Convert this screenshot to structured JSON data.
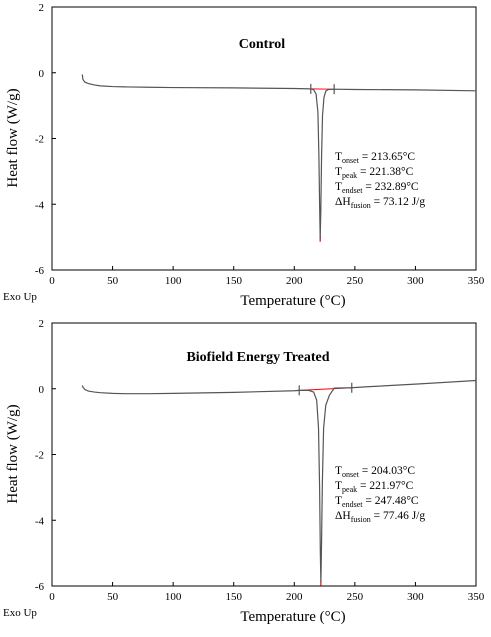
{
  "chart_data": [
    {
      "type": "line",
      "title": "Control",
      "xlabel": "Temperature (°C)",
      "ylabel": "Heat flow (W/g)",
      "corner_label": "Exo Up",
      "xlim": [
        0,
        350
      ],
      "ylim": [
        -6,
        2
      ],
      "x_ticks": [
        "0",
        "50",
        "100",
        "150",
        "200",
        "250",
        "300",
        "350"
      ],
      "y_ticks": [
        "2",
        "0",
        "-2",
        "-4",
        "-6"
      ],
      "grid": false,
      "series": [
        {
          "x": [
            25,
            25.5,
            27,
            30,
            35,
            40,
            50,
            60,
            80,
            100,
            150,
            200,
            213.65,
            216,
            218,
            219.5,
            220.3,
            220.9,
            221.38,
            221.9,
            222.5,
            223.3,
            224.5,
            226,
            228,
            232.89,
            250,
            300,
            350
          ],
          "y": [
            -0.05,
            -0.2,
            -0.28,
            -0.33,
            -0.37,
            -0.4,
            -0.42,
            -0.43,
            -0.44,
            -0.45,
            -0.46,
            -0.48,
            -0.49,
            -0.52,
            -0.65,
            -1.2,
            -2.5,
            -4.0,
            -5.05,
            -4.2,
            -2.6,
            -1.3,
            -0.75,
            -0.56,
            -0.51,
            -0.5,
            -0.51,
            -0.52,
            -0.55
          ]
        }
      ],
      "annotations": {
        "onset": {
          "label": "T",
          "sub": "onset",
          "value": " = 213.65°C"
        },
        "peak": {
          "label": "T",
          "sub": "peak",
          "value": " = 221.38°C"
        },
        "endset": {
          "label": "T",
          "sub": "endset",
          "value": " = 232.89°C"
        },
        "enthalpy": {
          "label": "ΔH",
          "sub": "fusion",
          "value": " = 73.12 J/g"
        }
      },
      "colors": {
        "line": "#555555",
        "baseline": "#ff0000"
      }
    },
    {
      "type": "line",
      "title": "Biofield Energy Treated",
      "xlabel": "Temperature (°C)",
      "ylabel": "Heat flow (W/g)",
      "corner_label": "Exo Up",
      "xlim": [
        0,
        350
      ],
      "ylim": [
        -6,
        2
      ],
      "x_ticks": [
        "0",
        "50",
        "100",
        "150",
        "200",
        "250",
        "300",
        "350"
      ],
      "y_ticks": [
        "2",
        "0",
        "-2",
        "-4",
        "-6"
      ],
      "grid": false,
      "series": [
        {
          "x": [
            25,
            25.5,
            27,
            30,
            35,
            40,
            50,
            60,
            80,
            100,
            150,
            200,
            204.03,
            212,
            216,
            218.5,
            220,
            220.9,
            221.5,
            221.97,
            222.5,
            223.2,
            224.2,
            226,
            229,
            233,
            247.48,
            260,
            300,
            350
          ],
          "y": [
            0.1,
            0.05,
            -0.02,
            -0.07,
            -0.1,
            -0.12,
            -0.14,
            -0.15,
            -0.15,
            -0.14,
            -0.11,
            -0.06,
            -0.05,
            -0.05,
            -0.1,
            -0.35,
            -1.2,
            -3.0,
            -5.0,
            -5.9,
            -4.7,
            -2.8,
            -1.2,
            -0.5,
            -0.2,
            0.02,
            0.03,
            0.06,
            0.14,
            0.25
          ]
        }
      ],
      "annotations": {
        "onset": {
          "label": "T",
          "sub": "onset",
          "value": " = 204.03°C"
        },
        "peak": {
          "label": "T",
          "sub": "peak",
          "value": " = 221.97°C"
        },
        "endset": {
          "label": "T",
          "sub": "endset",
          "value": " = 247.48°C"
        },
        "enthalpy": {
          "label": "ΔH",
          "sub": "fusion",
          "value": " = 77.46 J/g"
        }
      },
      "colors": {
        "line": "#555555",
        "baseline": "#ff0000"
      }
    }
  ]
}
